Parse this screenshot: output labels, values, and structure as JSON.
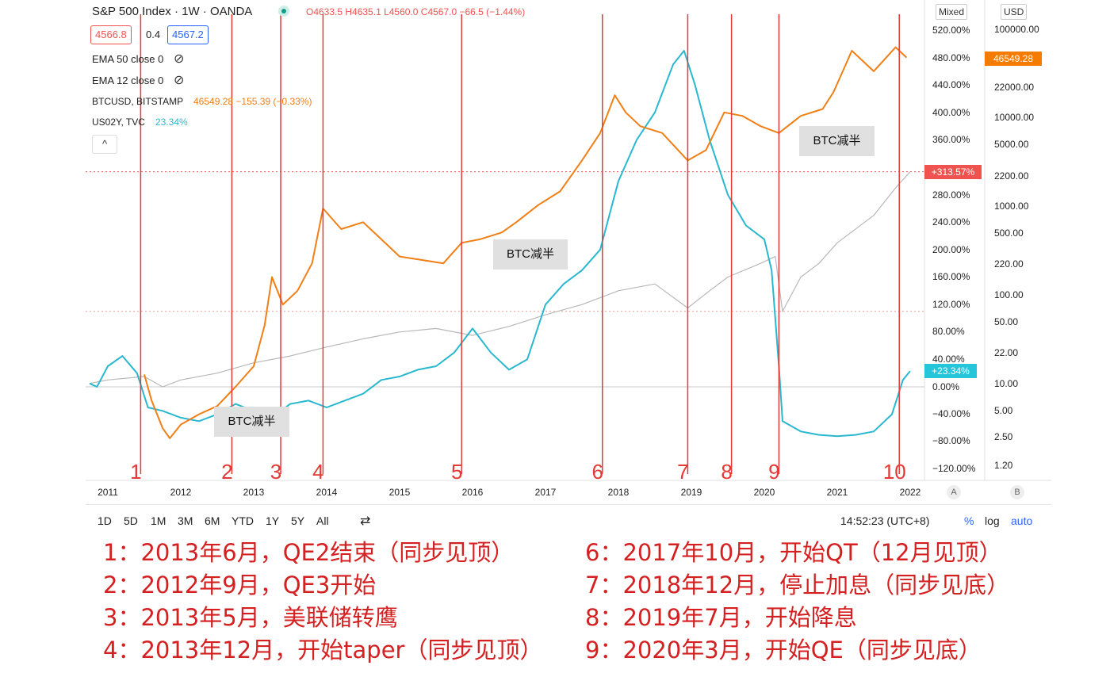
{
  "header": {
    "symbol_title": "S&P 500 Index · 1W · OANDA",
    "ohlc": "O4633.5  H4635.1  L4560.0  C4567.0  −66.5 (−1.44%)",
    "bid": "4566.8",
    "spread": "0.4",
    "ask": "4567.2",
    "ema50": "EMA 50 close 0",
    "ema12": "EMA 12 close 0",
    "btc_label": "BTCUSD, BITSTAMP",
    "btc_value": "46549.28  −155.39 (−0.33%)",
    "us02y_label": "US02Y, TVC",
    "us02y_value": "23.34%",
    "collapse_glyph": "^"
  },
  "scale_controls": {
    "mixed": "Mixed",
    "currency": "USD"
  },
  "chart_data": {
    "type": "line",
    "x_ticks": [
      "2011",
      "2012",
      "2013",
      "2014",
      "2015",
      "2016",
      "2017",
      "2018",
      "2019",
      "2020",
      "2021",
      "2022"
    ],
    "y_percent_ticks": [
      "520.00%",
      "480.00%",
      "440.00%",
      "400.00%",
      "360.00%",
      "280.00%",
      "240.00%",
      "200.00%",
      "160.00%",
      "120.00%",
      "80.00%",
      "40.00%",
      "0.00%",
      "−40.00%",
      "−80.00%",
      "−120.00%"
    ],
    "y_price_ticks": [
      "100000.00",
      "22000.00",
      "10000.00",
      "5000.00",
      "2200.00",
      "1000.00",
      "500.00",
      "220.00",
      "100.00",
      "50.00",
      "22.00",
      "10.00",
      "5.00",
      "2.50",
      "1.20"
    ],
    "badges": {
      "btc_price": "46549.28",
      "spx_pct": "+313.57%",
      "us02y_pct": "+23.34%"
    },
    "axis_buttons": [
      "A",
      "B"
    ],
    "series": [
      {
        "name": "BTCUSD, BITSTAMP",
        "color": "#f07f16",
        "points": [
          [
            2011.5,
            18
          ],
          [
            2011.6,
            -20
          ],
          [
            2011.75,
            -60
          ],
          [
            2011.85,
            -75
          ],
          [
            2012.0,
            -55
          ],
          [
            2012.25,
            -40
          ],
          [
            2012.5,
            -28
          ],
          [
            2012.75,
            0
          ],
          [
            2013.0,
            30
          ],
          [
            2013.15,
            90
          ],
          [
            2013.25,
            160
          ],
          [
            2013.4,
            120
          ],
          [
            2013.6,
            140
          ],
          [
            2013.8,
            180
          ],
          [
            2013.95,
            260
          ],
          [
            2014.2,
            230
          ],
          [
            2014.5,
            240
          ],
          [
            2014.75,
            215
          ],
          [
            2015.0,
            190
          ],
          [
            2015.3,
            185
          ],
          [
            2015.6,
            180
          ],
          [
            2015.85,
            210
          ],
          [
            2016.1,
            215
          ],
          [
            2016.4,
            225
          ],
          [
            2016.6,
            240
          ],
          [
            2016.9,
            265
          ],
          [
            2017.2,
            285
          ],
          [
            2017.5,
            330
          ],
          [
            2017.75,
            370
          ],
          [
            2017.95,
            425
          ],
          [
            2018.1,
            400
          ],
          [
            2018.3,
            380
          ],
          [
            2018.6,
            370
          ],
          [
            2018.95,
            330
          ],
          [
            2019.2,
            345
          ],
          [
            2019.45,
            400
          ],
          [
            2019.7,
            395
          ],
          [
            2019.95,
            380
          ],
          [
            2020.2,
            370
          ],
          [
            2020.5,
            395
          ],
          [
            2020.8,
            405
          ],
          [
            2020.95,
            430
          ],
          [
            2021.2,
            490
          ],
          [
            2021.5,
            460
          ],
          [
            2021.8,
            495
          ],
          [
            2021.95,
            480
          ]
        ]
      },
      {
        "name": "US02Y, TVC",
        "color": "#29b8cf",
        "points": [
          [
            2010.75,
            5
          ],
          [
            2010.85,
            0
          ],
          [
            2011.0,
            30
          ],
          [
            2011.2,
            45
          ],
          [
            2011.4,
            20
          ],
          [
            2011.55,
            -30
          ],
          [
            2011.75,
            -35
          ],
          [
            2012.0,
            -45
          ],
          [
            2012.25,
            -50
          ],
          [
            2012.5,
            -40
          ],
          [
            2012.75,
            -25
          ],
          [
            2013.0,
            -35
          ],
          [
            2013.25,
            -45
          ],
          [
            2013.5,
            -25
          ],
          [
            2013.75,
            -20
          ],
          [
            2014.0,
            -30
          ],
          [
            2014.25,
            -20
          ],
          [
            2014.5,
            -10
          ],
          [
            2014.75,
            10
          ],
          [
            2015.0,
            15
          ],
          [
            2015.25,
            25
          ],
          [
            2015.5,
            30
          ],
          [
            2015.75,
            50
          ],
          [
            2016.0,
            85
          ],
          [
            2016.25,
            50
          ],
          [
            2016.5,
            25
          ],
          [
            2016.75,
            40
          ],
          [
            2017.0,
            120
          ],
          [
            2017.25,
            150
          ],
          [
            2017.5,
            170
          ],
          [
            2017.75,
            200
          ],
          [
            2018.0,
            300
          ],
          [
            2018.25,
            360
          ],
          [
            2018.5,
            400
          ],
          [
            2018.75,
            470
          ],
          [
            2018.9,
            490
          ],
          [
            2019.05,
            440
          ],
          [
            2019.25,
            360
          ],
          [
            2019.5,
            280
          ],
          [
            2019.75,
            235
          ],
          [
            2020.0,
            215
          ],
          [
            2020.1,
            170
          ],
          [
            2020.2,
            30
          ],
          [
            2020.25,
            -50
          ],
          [
            2020.5,
            -65
          ],
          [
            2020.75,
            -70
          ],
          [
            2021.0,
            -72
          ],
          [
            2021.25,
            -70
          ],
          [
            2021.5,
            -65
          ],
          [
            2021.75,
            -40
          ],
          [
            2021.9,
            10
          ],
          [
            2022.0,
            23
          ]
        ]
      },
      {
        "name": "S&P 500 Index",
        "color": "#b8b8b8",
        "points": [
          [
            2010.75,
            5
          ],
          [
            2011.0,
            10
          ],
          [
            2011.5,
            15
          ],
          [
            2011.75,
            0
          ],
          [
            2012.0,
            10
          ],
          [
            2012.5,
            20
          ],
          [
            2013.0,
            35
          ],
          [
            2013.5,
            45
          ],
          [
            2014.0,
            58
          ],
          [
            2014.5,
            70
          ],
          [
            2015.0,
            80
          ],
          [
            2015.5,
            85
          ],
          [
            2016.0,
            75
          ],
          [
            2016.5,
            88
          ],
          [
            2017.0,
            105
          ],
          [
            2017.5,
            120
          ],
          [
            2018.0,
            140
          ],
          [
            2018.5,
            150
          ],
          [
            2018.95,
            115
          ],
          [
            2019.25,
            140
          ],
          [
            2019.5,
            160
          ],
          [
            2019.95,
            180
          ],
          [
            2020.15,
            190
          ],
          [
            2020.25,
            110
          ],
          [
            2020.5,
            160
          ],
          [
            2020.75,
            180
          ],
          [
            2021.0,
            210
          ],
          [
            2021.5,
            250
          ],
          [
            2021.8,
            290
          ],
          [
            2022.0,
            313.57
          ]
        ]
      }
    ],
    "markers": [
      {
        "label": "1",
        "x": 2011.45
      },
      {
        "label": "2",
        "x": 2012.7
      },
      {
        "label": "3",
        "x": 2013.37
      },
      {
        "label": "4",
        "x": 2013.95
      },
      {
        "label": "5",
        "x": 2015.85
      },
      {
        "label": "6",
        "x": 2017.78
      },
      {
        "label": "7",
        "x": 2018.95
      },
      {
        "label": "8",
        "x": 2019.55
      },
      {
        "label": "9",
        "x": 2020.2
      },
      {
        "label": "10",
        "x": 2021.85
      }
    ],
    "annotations": [
      "BTC减半",
      "BTC减半",
      "BTC减半"
    ]
  },
  "toolbar": {
    "ranges": [
      "1D",
      "5D",
      "1M",
      "3M",
      "6M",
      "YTD",
      "1Y",
      "5Y",
      "All"
    ],
    "compare_glyph": "⇄",
    "clock": "14:52:23 (UTC+8)",
    "pct": "%",
    "log": "log",
    "auto": "auto"
  },
  "notes": {
    "left": [
      "1：2013年6月，QE2结束（同步见顶）",
      "2：2012年9月，QE3开始",
      "3：2013年5月，美联储转鹰",
      "4：2013年12月，开始taper（同步见顶）"
    ],
    "right": [
      "6：2017年10月，开始QT（12月见顶）",
      "7：2018年12月，停止加息（同步见底）",
      "8：2019年7月，开始降息",
      "9：2020年3月，开始QE（同步见底）"
    ]
  }
}
